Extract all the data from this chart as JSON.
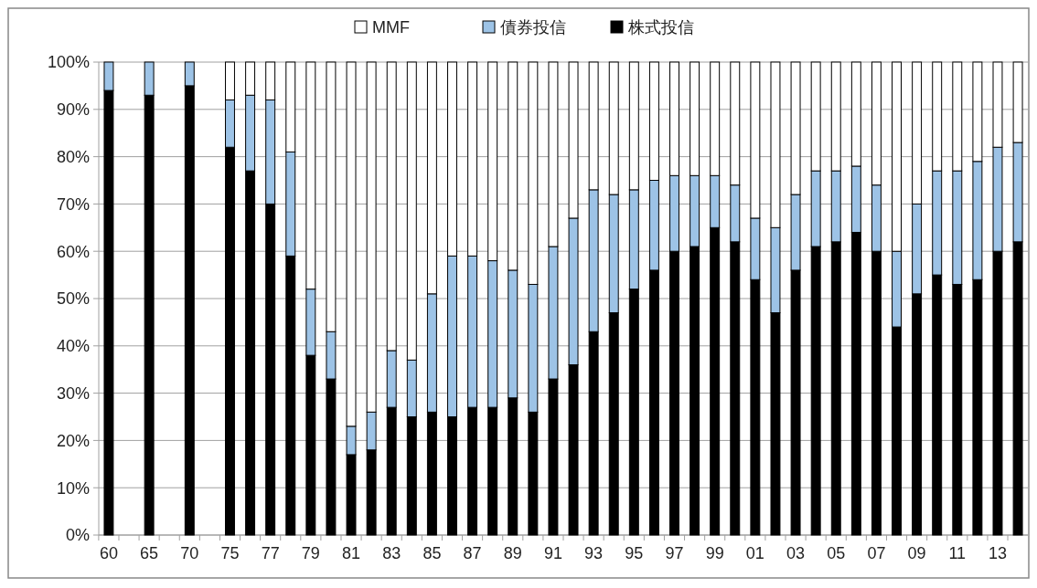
{
  "chart_data": {
    "type": "bar",
    "stacked": true,
    "categories": [
      "60",
      null,
      "65",
      null,
      "70",
      null,
      "75",
      null,
      "77",
      null,
      "79",
      null,
      "81",
      null,
      "83",
      null,
      "85",
      null,
      "87",
      null,
      "89",
      null,
      "91",
      null,
      "93",
      null,
      "95",
      null,
      "97",
      null,
      "99",
      null,
      "01",
      null,
      "03",
      null,
      "05",
      null,
      "07",
      null,
      "09",
      null,
      "11",
      null,
      "13",
      null
    ],
    "series": [
      {
        "name": "株式投信",
        "color": "#000000",
        "values": [
          94,
          null,
          93,
          null,
          95,
          null,
          82,
          77,
          70,
          59,
          38,
          33,
          17,
          18,
          27,
          25,
          26,
          25,
          27,
          27,
          29,
          26,
          33,
          36,
          43,
          47,
          52,
          56,
          60,
          61,
          65,
          62,
          54,
          47,
          56,
          61,
          62,
          64,
          60,
          44,
          51,
          55,
          53,
          54,
          60,
          62
        ]
      },
      {
        "name": "債券投信",
        "color": "#9dc3e6",
        "values": [
          6,
          null,
          7,
          null,
          5,
          null,
          10,
          16,
          22,
          22,
          14,
          10,
          6,
          8,
          12,
          12,
          25,
          34,
          32,
          31,
          27,
          27,
          28,
          31,
          30,
          25,
          21,
          19,
          16,
          15,
          11,
          12,
          13,
          18,
          16,
          16,
          15,
          14,
          14,
          16,
          19,
          22,
          24,
          25,
          22,
          21
        ]
      },
      {
        "name": "MMF",
        "color": "#ffffff",
        "values": [
          0,
          null,
          0,
          null,
          0,
          null,
          8,
          7,
          8,
          19,
          48,
          57,
          77,
          74,
          61,
          63,
          49,
          41,
          41,
          42,
          44,
          47,
          39,
          33,
          27,
          28,
          27,
          25,
          24,
          24,
          24,
          26,
          33,
          35,
          28,
          23,
          23,
          22,
          26,
          40,
          30,
          23,
          23,
          21,
          18,
          17
        ]
      }
    ],
    "ylim": [
      0,
      100
    ],
    "yticks": [
      {
        "value": 0,
        "label": "0%"
      },
      {
        "value": 10,
        "label": "10%"
      },
      {
        "value": 20,
        "label": "20%"
      },
      {
        "value": 30,
        "label": "30%"
      },
      {
        "value": 40,
        "label": "40%"
      },
      {
        "value": 50,
        "label": "50%"
      },
      {
        "value": 60,
        "label": "60%"
      },
      {
        "value": 70,
        "label": "70%"
      },
      {
        "value": 80,
        "label": "80%"
      },
      {
        "value": 90,
        "label": "90%"
      },
      {
        "value": 100,
        "label": "100%"
      }
    ],
    "grid": "y",
    "legend": "top"
  }
}
